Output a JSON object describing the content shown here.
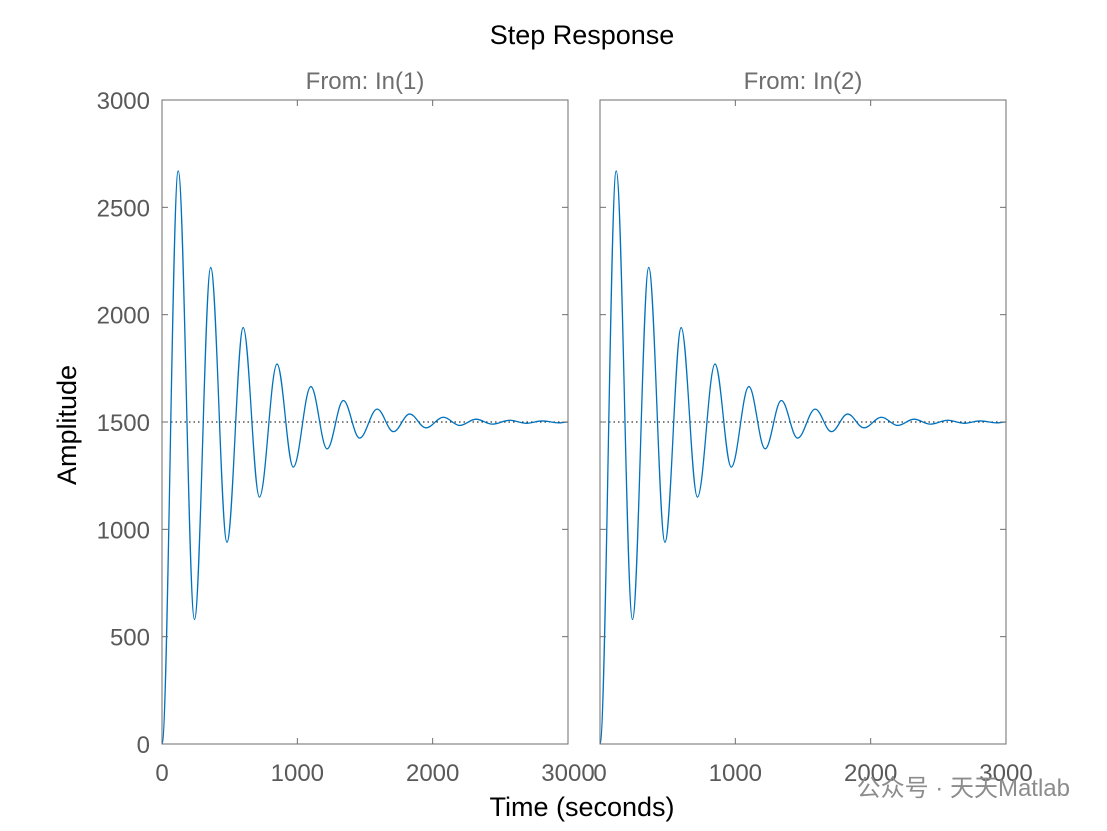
{
  "chart_data": {
    "type": "line",
    "title": "Step Response",
    "xlabel": "Time (seconds)",
    "ylabel": "Amplitude",
    "xlim": [
      0,
      3000
    ],
    "ylim": [
      0,
      3000
    ],
    "x_ticks": [
      "0",
      "1000",
      "2000",
      "3000"
    ],
    "y_ticks": [
      "0",
      "500",
      "1000",
      "1500",
      "2000",
      "2500",
      "3000"
    ],
    "steady_state": 1500,
    "grid": false,
    "panels": [
      {
        "subtitle": "From: In(1)",
        "series": [
          {
            "x": [
              0,
              120,
              240,
              360,
              480,
              600,
              720,
              850,
              970,
              1100,
              1220,
              1340,
              1460,
              1590,
              1710,
              1830,
              1950,
              2080,
              2200,
              2320,
              2440,
              2570,
              2690,
              2810,
              2930,
              3000
            ],
            "y": [
              0,
              2670,
              580,
              2220,
              940,
              1940,
              1150,
              1770,
              1290,
              1665,
              1375,
              1600,
              1425,
              1560,
              1455,
              1537,
              1473,
              1522,
              1484,
              1513,
              1490,
              1508,
              1494,
              1505,
              1496,
              1500
            ]
          }
        ]
      },
      {
        "subtitle": "From: In(2)",
        "series": [
          {
            "x": [
              0,
              120,
              240,
              360,
              480,
              600,
              720,
              850,
              970,
              1100,
              1220,
              1340,
              1460,
              1590,
              1710,
              1830,
              1950,
              2080,
              2200,
              2320,
              2440,
              2570,
              2690,
              2810,
              2930,
              3000
            ],
            "y": [
              0,
              2670,
              580,
              2220,
              940,
              1940,
              1150,
              1770,
              1290,
              1665,
              1375,
              1600,
              1425,
              1560,
              1455,
              1537,
              1473,
              1522,
              1484,
              1513,
              1490,
              1508,
              1494,
              1505,
              1496,
              1500
            ]
          }
        ]
      }
    ],
    "line_color": "#0072bd",
    "axes_color": "#6e6e6e",
    "watermark": "公众号 · 天天Matlab"
  }
}
